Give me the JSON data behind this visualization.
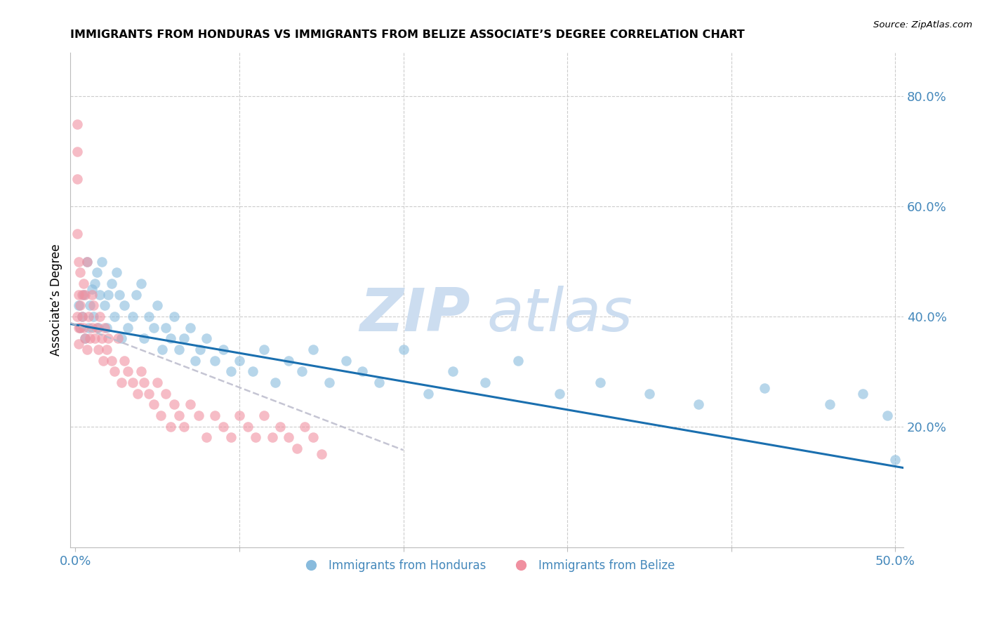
{
  "title": "IMMIGRANTS FROM HONDURAS VS IMMIGRANTS FROM BELIZE ASSOCIATE’S DEGREE CORRELATION CHART",
  "source": "Source: ZipAtlas.com",
  "ylabel": "Associate’s Degree",
  "right_ytick_labels": [
    "",
    "20.0%",
    "40.0%",
    "60.0%",
    "80.0%"
  ],
  "right_yticks": [
    0.0,
    0.2,
    0.4,
    0.6,
    0.8
  ],
  "xlim": [
    -0.003,
    0.505
  ],
  "ylim": [
    -0.02,
    0.88
  ],
  "legend_label_honduras": "Immigrants from Honduras",
  "legend_label_belize": "Immigrants from Belize",
  "blue_color": "#88bbdd",
  "pink_color": "#f090a0",
  "line_blue_color": "#1a6faf",
  "line_pink_color": "#cc8899",
  "watermark_zip_color": "#ccddf0",
  "watermark_atlas_color": "#ccddf0",
  "grid_color": "#cccccc",
  "title_fontsize": 11.5,
  "axis_color": "#4488bb",
  "legend_r_color": "#3366aa",
  "honduras_x": [
    0.002,
    0.003,
    0.004,
    0.005,
    0.006,
    0.007,
    0.008,
    0.009,
    0.01,
    0.011,
    0.012,
    0.013,
    0.014,
    0.015,
    0.016,
    0.018,
    0.019,
    0.02,
    0.022,
    0.024,
    0.025,
    0.027,
    0.028,
    0.03,
    0.032,
    0.035,
    0.037,
    0.04,
    0.042,
    0.045,
    0.048,
    0.05,
    0.053,
    0.055,
    0.058,
    0.06,
    0.063,
    0.066,
    0.07,
    0.073,
    0.076,
    0.08,
    0.085,
    0.09,
    0.095,
    0.1,
    0.108,
    0.115,
    0.122,
    0.13,
    0.138,
    0.145,
    0.155,
    0.165,
    0.175,
    0.185,
    0.2,
    0.215,
    0.23,
    0.25,
    0.27,
    0.295,
    0.32,
    0.35,
    0.38,
    0.42,
    0.46,
    0.48,
    0.495,
    0.5
  ],
  "honduras_y": [
    0.42,
    0.38,
    0.4,
    0.44,
    0.36,
    0.5,
    0.38,
    0.42,
    0.45,
    0.4,
    0.46,
    0.48,
    0.38,
    0.44,
    0.5,
    0.42,
    0.38,
    0.44,
    0.46,
    0.4,
    0.48,
    0.44,
    0.36,
    0.42,
    0.38,
    0.4,
    0.44,
    0.46,
    0.36,
    0.4,
    0.38,
    0.42,
    0.34,
    0.38,
    0.36,
    0.4,
    0.34,
    0.36,
    0.38,
    0.32,
    0.34,
    0.36,
    0.32,
    0.34,
    0.3,
    0.32,
    0.3,
    0.34,
    0.28,
    0.32,
    0.3,
    0.34,
    0.28,
    0.32,
    0.3,
    0.28,
    0.34,
    0.26,
    0.3,
    0.28,
    0.32,
    0.26,
    0.28,
    0.26,
    0.24,
    0.27,
    0.24,
    0.26,
    0.22,
    0.14
  ],
  "belize_x": [
    0.001,
    0.001,
    0.001,
    0.001,
    0.001,
    0.002,
    0.002,
    0.002,
    0.002,
    0.003,
    0.003,
    0.003,
    0.004,
    0.004,
    0.005,
    0.005,
    0.006,
    0.006,
    0.007,
    0.007,
    0.008,
    0.009,
    0.01,
    0.01,
    0.011,
    0.012,
    0.013,
    0.014,
    0.015,
    0.016,
    0.017,
    0.018,
    0.019,
    0.02,
    0.022,
    0.024,
    0.026,
    0.028,
    0.03,
    0.032,
    0.035,
    0.038,
    0.04,
    0.042,
    0.045,
    0.048,
    0.05,
    0.052,
    0.055,
    0.058,
    0.06,
    0.063,
    0.066,
    0.07,
    0.075,
    0.08,
    0.085,
    0.09,
    0.095,
    0.1,
    0.105,
    0.11,
    0.115,
    0.12,
    0.125,
    0.13,
    0.135,
    0.14,
    0.145,
    0.15
  ],
  "belize_y": [
    0.75,
    0.7,
    0.65,
    0.55,
    0.4,
    0.5,
    0.44,
    0.38,
    0.35,
    0.48,
    0.42,
    0.38,
    0.44,
    0.4,
    0.46,
    0.38,
    0.44,
    0.36,
    0.5,
    0.34,
    0.4,
    0.36,
    0.44,
    0.38,
    0.42,
    0.36,
    0.38,
    0.34,
    0.4,
    0.36,
    0.32,
    0.38,
    0.34,
    0.36,
    0.32,
    0.3,
    0.36,
    0.28,
    0.32,
    0.3,
    0.28,
    0.26,
    0.3,
    0.28,
    0.26,
    0.24,
    0.28,
    0.22,
    0.26,
    0.2,
    0.24,
    0.22,
    0.2,
    0.24,
    0.22,
    0.18,
    0.22,
    0.2,
    0.18,
    0.22,
    0.2,
    0.18,
    0.22,
    0.18,
    0.2,
    0.18,
    0.16,
    0.2,
    0.18,
    0.15
  ]
}
